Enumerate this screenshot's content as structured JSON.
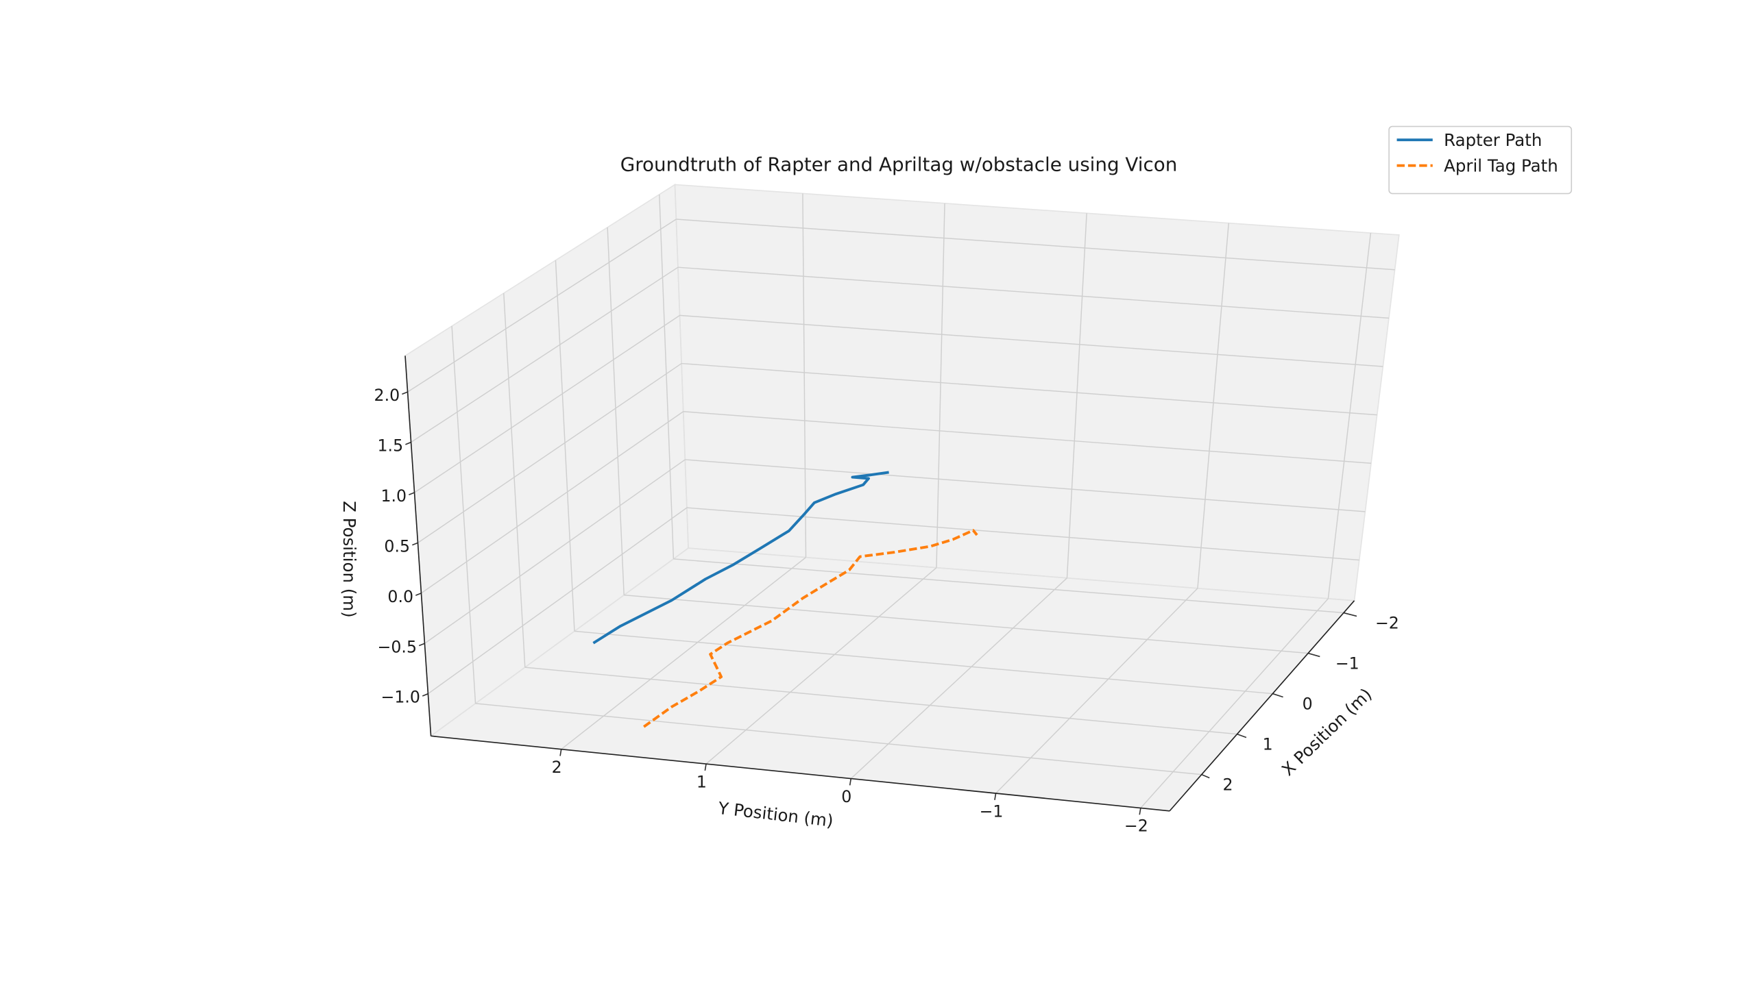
{
  "chart_data": {
    "type": "line3d",
    "title": "Groundtruth of Rapter and Apriltag w/obstacle using Vicon",
    "xlabel": "X Position (m)",
    "ylabel": "Y Position (m)",
    "zlabel": "Z Position (m)",
    "xlim": [
      -2.3,
      2.9
    ],
    "ylim": [
      -2.2,
      2.9
    ],
    "zlim": [
      -1.42,
      2.36
    ],
    "xticks": [
      {
        "value": -2,
        "label": "−2"
      },
      {
        "value": -1,
        "label": "−1"
      },
      0,
      1,
      2
    ],
    "yticks": [
      {
        "value": -2,
        "label": "−2"
      },
      {
        "value": -1,
        "label": "−1"
      },
      0,
      1,
      2
    ],
    "zticks": [
      {
        "value": -1.0,
        "label": "−1.0"
      },
      {
        "value": -0.5,
        "label": "−0.5"
      },
      {
        "value": 0,
        "label": "0.0"
      },
      0.5,
      {
        "value": 1,
        "label": "1.0"
      },
      1.5,
      {
        "value": 2,
        "label": "2.0"
      }
    ],
    "grid": true,
    "legend": "upper right",
    "series": [
      {
        "name": "Rapter Path",
        "color": "#1f77b4",
        "linestyle": "solid",
        "x": [
          2.48,
          2.0,
          1.25,
          0.65,
          0.23,
          -0.24,
          -0.72,
          -1.17,
          -1.47,
          -1.73,
          -1.94,
          -1.94,
          -1.94,
          -1.94,
          -1.94
        ],
        "y": [
          1.89,
          1.86,
          1.75,
          1.71,
          1.65,
          1.61,
          1.57,
          1.61,
          1.64,
          1.57,
          1.44,
          1.4,
          1.52,
          1.38,
          1.25
        ],
        "z": [
          -0.5,
          -0.5,
          -0.5,
          -0.5,
          -0.5,
          -0.5,
          -0.5,
          -0.5,
          -0.5,
          -0.5,
          -0.47,
          -0.4,
          -0.4,
          -0.36,
          -0.32
        ]
      },
      {
        "name": "April Tag Path",
        "color": "#ff7f0e",
        "linestyle": "dashed",
        "x": [
          2.45,
          1.91,
          1.47,
          1.07,
          0.55,
          0.24,
          -0.4,
          -1.01,
          -1.42,
          -1.79,
          -2.14,
          -2.15,
          -2.15,
          -2.15,
          -2.15,
          -2.15
        ],
        "y": [
          1.57,
          1.55,
          1.5,
          1.47,
          1.72,
          1.7,
          1.59,
          1.57,
          1.53,
          1.49,
          1.53,
          1.27,
          1.0,
          0.83,
          0.68,
          0.65
        ],
        "z": [
          -1.3,
          -1.3,
          -1.3,
          -1.3,
          -1.3,
          -1.3,
          -1.3,
          -1.3,
          -1.3,
          -1.3,
          -1.3,
          -1.23,
          -1.14,
          -1.05,
          -0.94,
          -0.985
        ]
      }
    ]
  }
}
